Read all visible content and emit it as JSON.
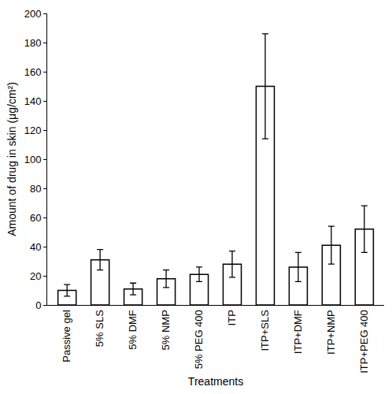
{
  "chart_data": {
    "type": "bar",
    "x_label": "Treatments",
    "y_label": "Amount of drug in skin (μg/cm²)",
    "categories": [
      "Passive gel",
      "5% SLS",
      "5% DMF",
      "5% NMP",
      "5% PEG 400",
      "ITP",
      "ITP+SLS",
      "ITP+DMF",
      "ITP+NMP",
      "ITP+PEG 400"
    ],
    "values": [
      10,
      31,
      11,
      18,
      21,
      28,
      150,
      26,
      41,
      52
    ],
    "errors": [
      4,
      7,
      4,
      6,
      5,
      9,
      36,
      10,
      13,
      16
    ],
    "color": "#ffffff",
    "ylim": [
      0,
      200
    ],
    "yticks": [
      0,
      20,
      40,
      60,
      80,
      100,
      120,
      140,
      160,
      180,
      200
    ],
    "grid": false
  }
}
